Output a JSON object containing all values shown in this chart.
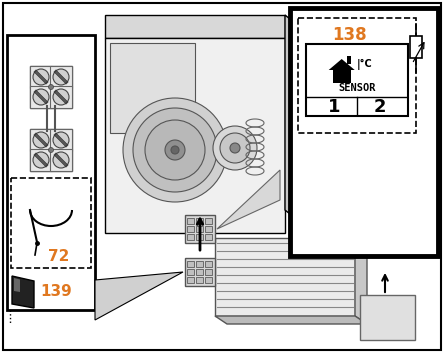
{
  "bg_color": "#ffffff",
  "black": "#000000",
  "gray_light": "#f5f5f5",
  "gray_med": "#cccccc",
  "gray_dark": "#888888",
  "orange": "#e07820",
  "figsize": [
    4.44,
    3.53
  ],
  "dpi": 100,
  "label_72": "72",
  "label_139": "139",
  "label_138": "138",
  "label_sensor": "SENSOR",
  "label_1": "1",
  "label_2": "2"
}
